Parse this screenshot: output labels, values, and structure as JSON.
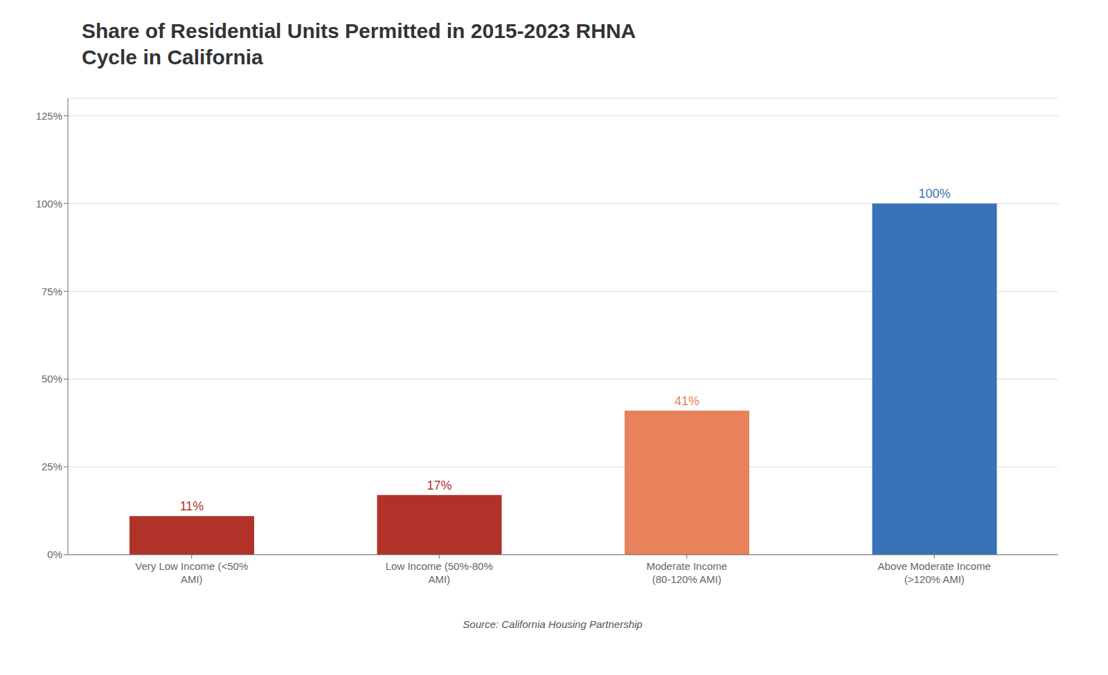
{
  "chart_data": {
    "type": "bar",
    "title": "Share of Residential Units Permitted in 2015-2023 RHNA\nCycle in California",
    "categories": [
      "Very Low Income (<50%\nAMI)",
      "Low Income (50%-80%\nAMI)",
      "Moderate Income\n(80-120% AMI)",
      "Above Moderate Income\n(>120% AMI)"
    ],
    "values": [
      11,
      17,
      41,
      100
    ],
    "value_labels": [
      "11%",
      "17%",
      "41%",
      "100%"
    ],
    "data_labels": true,
    "colors": [
      "#b03228",
      "#b03228",
      "#e8825a",
      "#3a72b8"
    ],
    "ylim": [
      0,
      130
    ],
    "yticks": [
      {
        "value": 0,
        "label": "0%"
      },
      {
        "value": 25,
        "label": "25%"
      },
      {
        "value": 50,
        "label": "50%"
      },
      {
        "value": 75,
        "label": "75%"
      },
      {
        "value": 100,
        "label": "100%"
      },
      {
        "value": 125,
        "label": "125%"
      }
    ],
    "grid": true,
    "annotations": [
      "Source: California Housing Partnership"
    ]
  }
}
